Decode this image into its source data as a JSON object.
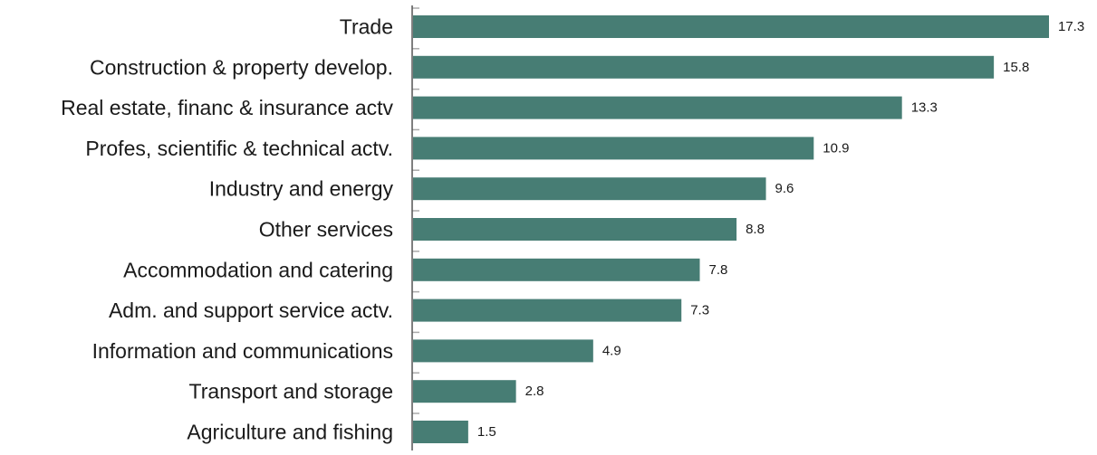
{
  "chart_data": {
    "type": "bar",
    "orientation": "horizontal",
    "categories": [
      "Trade",
      "Construction & property develop.",
      "Real estate, financ & insurance actv",
      "Profes, scientific & technical actv.",
      "Industry and energy",
      "Other services",
      "Accommodation and catering",
      "Adm. and support service actv.",
      "Information and communications",
      "Transport and storage",
      "Agriculture and fishing"
    ],
    "values": [
      17.3,
      15.8,
      13.3,
      10.9,
      9.6,
      8.8,
      7.8,
      7.3,
      4.9,
      2.8,
      1.5
    ],
    "value_labels": [
      "17.3",
      "15.8",
      "13.3",
      "10.9",
      "9.6",
      "8.8",
      "7.8",
      "7.3",
      "4.9",
      "2.8",
      "1.5"
    ],
    "title": "",
    "xlabel": "",
    "ylabel": "",
    "xlim": [
      0,
      17.3
    ],
    "grid": false,
    "legend": "none",
    "colors": {
      "bar": "#477d74",
      "axis": "#555555",
      "tick": "#aaaaaa",
      "text": "#1a1a1a"
    }
  }
}
